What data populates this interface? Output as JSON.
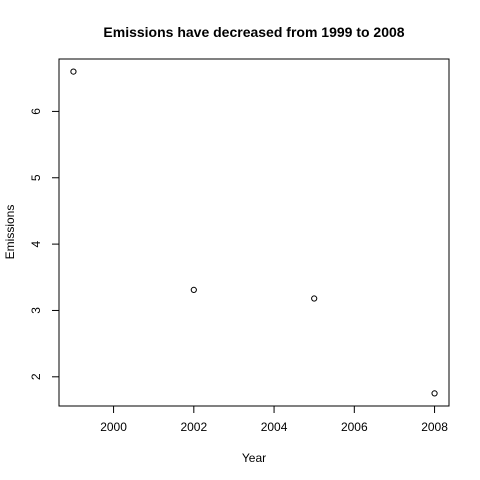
{
  "chart_data": {
    "type": "scatter",
    "title": "Emissions have decreased from 1999 to 2008",
    "xlabel": "Year",
    "ylabel": "Emissions",
    "x": [
      1999,
      2002,
      2005,
      2008
    ],
    "y": [
      6.6,
      3.31,
      3.18,
      1.75
    ],
    "xlim": [
      1998.64,
      2008.36
    ],
    "ylim": [
      1.56,
      6.79
    ],
    "xticks": [
      2000,
      2002,
      2004,
      2006,
      2008
    ],
    "yticks": [
      2,
      3,
      4,
      5,
      6
    ],
    "grid": false,
    "legend": "none"
  }
}
